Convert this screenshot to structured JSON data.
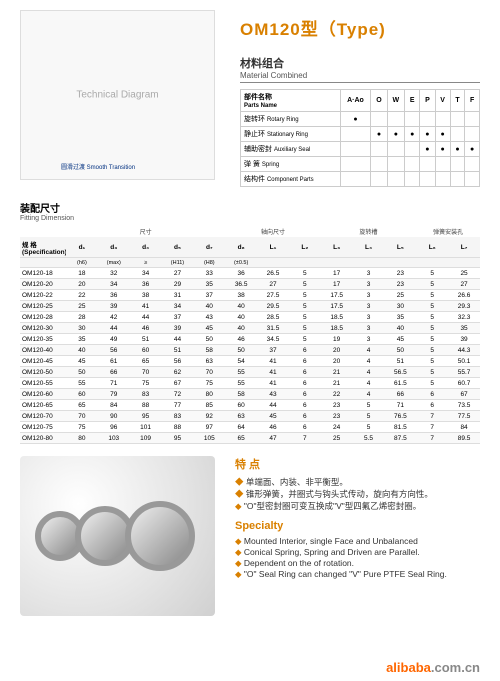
{
  "title": "OM120型（Type)",
  "material": {
    "heading_cn": "材料组合",
    "heading_en": "Material Combined",
    "parts_label_cn": "部件名称",
    "parts_label_en": "Parts Name",
    "col_codes": [
      "A·Ao",
      "O",
      "W",
      "E",
      "P",
      "V",
      "T",
      "F"
    ],
    "rows": [
      {
        "cn": "旋转环",
        "en": "Rotary Ring",
        "vals": [
          "●",
          "",
          "",
          "",
          "",
          "",
          "",
          ""
        ]
      },
      {
        "cn": "静止环",
        "en": "Stationary Ring",
        "vals": [
          "",
          "●",
          "●",
          "●",
          "●",
          "●",
          "",
          ""
        ]
      },
      {
        "cn": "辅助密封",
        "en": "Auxiliary Seal",
        "vals": [
          "",
          "",
          "",
          "",
          "●",
          "●",
          "●",
          "●"
        ]
      },
      {
        "cn": "弹 簧",
        "en": "Spring",
        "vals": [
          "",
          "",
          "",
          "",
          "",
          "",
          "",
          ""
        ]
      },
      {
        "cn": "结构件",
        "en": "Component Parts",
        "vals": [
          "",
          "",
          "",
          "",
          "",
          "",
          "",
          ""
        ]
      }
    ]
  },
  "fitting": {
    "heading_cn": "装配尺寸",
    "heading_en": "Fitting Dimension",
    "group1": "尺寸",
    "group2": "轴向尺寸",
    "group3": "旋转槽",
    "group4": "弹簧安装孔",
    "spec_label": "规 格\n(Specification)",
    "cols": [
      "d₁",
      "d₃",
      "d₄",
      "d₅",
      "d₇",
      "d₈",
      "L₁",
      "L₂",
      "L₃",
      "L₄",
      "L₅",
      "L₆",
      "L₇"
    ],
    "sub": [
      "(h6)",
      "(max)",
      "≥",
      "(H11)",
      "(H8)",
      "(±0.5)",
      "",
      "",
      "",
      "",
      "",
      "",
      ""
    ],
    "rows": [
      [
        "OM120-18",
        "18",
        "32",
        "34",
        "27",
        "33",
        "36",
        "26.5",
        "5",
        "17",
        "3",
        "23",
        "5",
        "25"
      ],
      [
        "OM120-20",
        "20",
        "34",
        "36",
        "29",
        "35",
        "36.5",
        "27",
        "5",
        "17",
        "3",
        "23",
        "5",
        "27"
      ],
      [
        "OM120-22",
        "22",
        "36",
        "38",
        "31",
        "37",
        "38",
        "27.5",
        "5",
        "17.5",
        "3",
        "25",
        "5",
        "26.6"
      ],
      [
        "OM120-25",
        "25",
        "39",
        "41",
        "34",
        "40",
        "40",
        "29.5",
        "5",
        "17.5",
        "3",
        "30",
        "5",
        "29.3"
      ],
      [
        "OM120-28",
        "28",
        "42",
        "44",
        "37",
        "43",
        "40",
        "28.5",
        "5",
        "18.5",
        "3",
        "35",
        "5",
        "32.3"
      ],
      [
        "OM120-30",
        "30",
        "44",
        "46",
        "39",
        "45",
        "40",
        "31.5",
        "5",
        "18.5",
        "3",
        "40",
        "5",
        "35"
      ],
      [
        "OM120-35",
        "35",
        "49",
        "51",
        "44",
        "50",
        "46",
        "34.5",
        "5",
        "19",
        "3",
        "45",
        "5",
        "39"
      ],
      [
        "OM120-40",
        "40",
        "56",
        "60",
        "51",
        "58",
        "50",
        "37",
        "6",
        "20",
        "4",
        "50",
        "5",
        "44.3"
      ],
      [
        "OM120-45",
        "45",
        "61",
        "65",
        "56",
        "63",
        "54",
        "41",
        "6",
        "20",
        "4",
        "51",
        "5",
        "50.1"
      ],
      [
        "OM120-50",
        "50",
        "66",
        "70",
        "62",
        "70",
        "55",
        "41",
        "6",
        "21",
        "4",
        "56.5",
        "5",
        "55.7"
      ],
      [
        "OM120-55",
        "55",
        "71",
        "75",
        "67",
        "75",
        "55",
        "41",
        "6",
        "21",
        "4",
        "61.5",
        "5",
        "60.7"
      ],
      [
        "OM120-60",
        "60",
        "79",
        "83",
        "72",
        "80",
        "58",
        "43",
        "6",
        "22",
        "4",
        "66",
        "6",
        "67"
      ],
      [
        "OM120-65",
        "65",
        "84",
        "88",
        "77",
        "85",
        "60",
        "44",
        "6",
        "23",
        "5",
        "71",
        "6",
        "73.5"
      ],
      [
        "OM120-70",
        "70",
        "90",
        "95",
        "83",
        "92",
        "63",
        "45",
        "6",
        "23",
        "5",
        "76.5",
        "7",
        "77.5"
      ],
      [
        "OM120-75",
        "75",
        "96",
        "101",
        "88",
        "97",
        "64",
        "46",
        "6",
        "24",
        "5",
        "81.5",
        "7",
        "84"
      ],
      [
        "OM120-80",
        "80",
        "103",
        "109",
        "95",
        "105",
        "65",
        "47",
        "7",
        "25",
        "5.5",
        "87.5",
        "7",
        "89.5"
      ]
    ]
  },
  "features": {
    "heading_cn": "特 点",
    "items_cn": [
      "单端面、内装、非平衡型。",
      "锥形弹簧，并圈式与钩头式传动，旋向有方向性。",
      "\"O\"型密封圈可变互换成\"V\"型四氟乙烯密封圈。"
    ],
    "heading_en": "Specialty",
    "items_en": [
      "Mounted Interior, single Face and Unbalanced",
      "Conical Spring, Spring and Driven are Parallel.",
      "Dependent on the of rotation.",
      "\"O\" Seal Ring can changed \"V\" Pure PTFE Seal Ring."
    ]
  },
  "brand": {
    "a": "alibaba",
    "b": ".com.cn"
  },
  "diagram_note": "圆滑过渡 Smooth Transition"
}
